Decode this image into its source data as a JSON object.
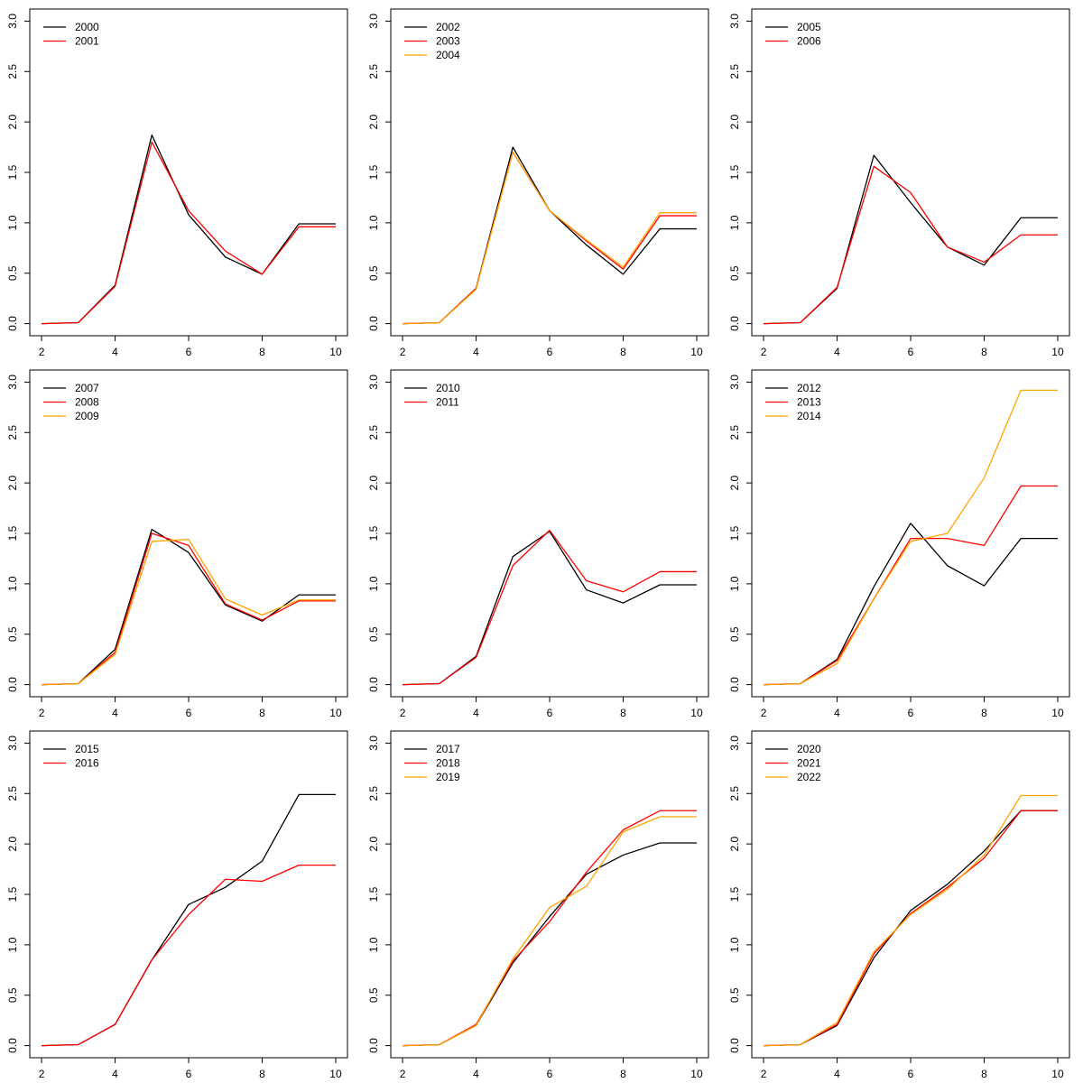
{
  "chart_data": [
    {
      "type": "line",
      "x": [
        2,
        3,
        4,
        5,
        6,
        7,
        8,
        9,
        10
      ],
      "xticks": [
        2,
        4,
        6,
        8,
        10
      ],
      "yticks": [
        0.0,
        0.5,
        1.0,
        1.5,
        2.0,
        2.5,
        3.0
      ],
      "ylim": [
        0,
        3
      ],
      "legend": "top-left",
      "series": [
        {
          "name": "2000",
          "color": "#000000",
          "values": [
            0.0,
            0.01,
            0.38,
            1.87,
            1.08,
            0.66,
            0.49,
            0.99,
            0.99
          ]
        },
        {
          "name": "2001",
          "color": "#ff0000",
          "values": [
            0.0,
            0.01,
            0.37,
            1.8,
            1.12,
            0.72,
            0.49,
            0.96,
            0.96
          ]
        }
      ]
    },
    {
      "type": "line",
      "x": [
        2,
        3,
        4,
        5,
        6,
        7,
        8,
        9,
        10
      ],
      "xticks": [
        2,
        4,
        6,
        8,
        10
      ],
      "yticks": [
        0.0,
        0.5,
        1.0,
        1.5,
        2.0,
        2.5,
        3.0
      ],
      "ylim": [
        0,
        3
      ],
      "legend": "top-left",
      "series": [
        {
          "name": "2002",
          "color": "#000000",
          "values": [
            0.0,
            0.01,
            0.35,
            1.75,
            1.12,
            0.78,
            0.49,
            0.94,
            0.94
          ]
        },
        {
          "name": "2003",
          "color": "#ff0000",
          "values": [
            0.0,
            0.01,
            0.35,
            1.7,
            1.12,
            0.82,
            0.54,
            1.07,
            1.07
          ]
        },
        {
          "name": "2004",
          "color": "#ffa500",
          "values": [
            0.0,
            0.01,
            0.34,
            1.7,
            1.12,
            0.83,
            0.56,
            1.1,
            1.1
          ]
        }
      ]
    },
    {
      "type": "line",
      "x": [
        2,
        3,
        4,
        5,
        6,
        7,
        8,
        9,
        10
      ],
      "xticks": [
        2,
        4,
        6,
        8,
        10
      ],
      "yticks": [
        0.0,
        0.5,
        1.0,
        1.5,
        2.0,
        2.5,
        3.0
      ],
      "ylim": [
        0,
        3
      ],
      "legend": "top-left",
      "series": [
        {
          "name": "2005",
          "color": "#000000",
          "values": [
            0.0,
            0.01,
            0.35,
            1.67,
            1.2,
            0.76,
            0.58,
            1.05,
            1.05
          ]
        },
        {
          "name": "2006",
          "color": "#ff0000",
          "values": [
            0.0,
            0.01,
            0.36,
            1.56,
            1.3,
            0.76,
            0.61,
            0.88,
            0.88
          ]
        }
      ]
    },
    {
      "type": "line",
      "x": [
        2,
        3,
        4,
        5,
        6,
        7,
        8,
        9,
        10
      ],
      "xticks": [
        2,
        4,
        6,
        8,
        10
      ],
      "yticks": [
        0.0,
        0.5,
        1.0,
        1.5,
        2.0,
        2.5,
        3.0
      ],
      "ylim": [
        0,
        3
      ],
      "legend": "top-left",
      "series": [
        {
          "name": "2007",
          "color": "#000000",
          "values": [
            0.0,
            0.01,
            0.35,
            1.54,
            1.31,
            0.79,
            0.63,
            0.89,
            0.89
          ]
        },
        {
          "name": "2008",
          "color": "#ff0000",
          "values": [
            0.0,
            0.01,
            0.32,
            1.5,
            1.38,
            0.8,
            0.64,
            0.83,
            0.83
          ]
        },
        {
          "name": "2009",
          "color": "#ffa500",
          "values": [
            0.0,
            0.01,
            0.3,
            1.42,
            1.44,
            0.85,
            0.69,
            0.84,
            0.84
          ]
        }
      ]
    },
    {
      "type": "line",
      "x": [
        2,
        3,
        4,
        5,
        6,
        7,
        8,
        9,
        10
      ],
      "xticks": [
        2,
        4,
        6,
        8,
        10
      ],
      "yticks": [
        0.0,
        0.5,
        1.0,
        1.5,
        2.0,
        2.5,
        3.0
      ],
      "ylim": [
        0,
        3
      ],
      "legend": "top-left",
      "series": [
        {
          "name": "2010",
          "color": "#000000",
          "values": [
            0.0,
            0.01,
            0.28,
            1.27,
            1.52,
            0.94,
            0.81,
            0.99,
            0.99
          ]
        },
        {
          "name": "2011",
          "color": "#ff0000",
          "values": [
            0.0,
            0.01,
            0.27,
            1.18,
            1.53,
            1.03,
            0.92,
            1.12,
            1.12
          ]
        }
      ]
    },
    {
      "type": "line",
      "x": [
        2,
        3,
        4,
        5,
        6,
        7,
        8,
        9,
        10
      ],
      "xticks": [
        2,
        4,
        6,
        8,
        10
      ],
      "yticks": [
        0.0,
        0.5,
        1.0,
        1.5,
        2.0,
        2.5,
        3.0
      ],
      "ylim": [
        0,
        3
      ],
      "legend": "top-left",
      "series": [
        {
          "name": "2012",
          "color": "#000000",
          "values": [
            0.0,
            0.01,
            0.25,
            0.97,
            1.6,
            1.18,
            0.98,
            1.45,
            1.45
          ]
        },
        {
          "name": "2013",
          "color": "#ff0000",
          "values": [
            0.0,
            0.01,
            0.24,
            0.85,
            1.45,
            1.45,
            1.38,
            1.97,
            1.97
          ]
        },
        {
          "name": "2014",
          "color": "#ffa500",
          "values": [
            0.0,
            0.01,
            0.21,
            0.85,
            1.42,
            1.5,
            2.05,
            2.92,
            2.92
          ]
        }
      ]
    },
    {
      "type": "line",
      "x": [
        2,
        3,
        4,
        5,
        6,
        7,
        8,
        9,
        10
      ],
      "xticks": [
        2,
        4,
        6,
        8,
        10
      ],
      "yticks": [
        0.0,
        0.5,
        1.0,
        1.5,
        2.0,
        2.5,
        3.0
      ],
      "ylim": [
        0,
        3
      ],
      "legend": "top-left",
      "series": [
        {
          "name": "2015",
          "color": "#000000",
          "values": [
            0.0,
            0.01,
            0.21,
            0.85,
            1.4,
            1.57,
            1.83,
            2.49,
            2.49
          ]
        },
        {
          "name": "2016",
          "color": "#ff0000",
          "values": [
            0.0,
            0.01,
            0.21,
            0.85,
            1.3,
            1.65,
            1.63,
            1.79,
            1.79
          ]
        }
      ]
    },
    {
      "type": "line",
      "x": [
        2,
        3,
        4,
        5,
        6,
        7,
        8,
        9,
        10
      ],
      "xticks": [
        2,
        4,
        6,
        8,
        10
      ],
      "yticks": [
        0.0,
        0.5,
        1.0,
        1.5,
        2.0,
        2.5,
        3.0
      ],
      "ylim": [
        0,
        3
      ],
      "legend": "top-left",
      "series": [
        {
          "name": "2017",
          "color": "#000000",
          "values": [
            0.0,
            0.01,
            0.2,
            0.82,
            1.28,
            1.7,
            1.89,
            2.01,
            2.01
          ]
        },
        {
          "name": "2018",
          "color": "#ff0000",
          "values": [
            0.0,
            0.01,
            0.21,
            0.84,
            1.23,
            1.72,
            2.14,
            2.33,
            2.33
          ]
        },
        {
          "name": "2019",
          "color": "#ffa500",
          "values": [
            0.0,
            0.01,
            0.2,
            0.86,
            1.37,
            1.58,
            2.12,
            2.27,
            2.27
          ]
        }
      ]
    },
    {
      "type": "line",
      "x": [
        2,
        3,
        4,
        5,
        6,
        7,
        8,
        9,
        10
      ],
      "xticks": [
        2,
        4,
        6,
        8,
        10
      ],
      "yticks": [
        0.0,
        0.5,
        1.0,
        1.5,
        2.0,
        2.5,
        3.0
      ],
      "ylim": [
        0,
        3
      ],
      "legend": "top-left",
      "series": [
        {
          "name": "2020",
          "color": "#000000",
          "values": [
            0.0,
            0.01,
            0.2,
            0.87,
            1.34,
            1.6,
            1.93,
            2.33,
            2.33
          ]
        },
        {
          "name": "2021",
          "color": "#ff0000",
          "values": [
            0.0,
            0.01,
            0.21,
            0.91,
            1.31,
            1.57,
            1.86,
            2.33,
            2.33
          ]
        },
        {
          "name": "2022",
          "color": "#ffa500",
          "values": [
            0.0,
            0.01,
            0.23,
            0.93,
            1.3,
            1.55,
            1.89,
            2.48,
            2.48
          ]
        }
      ]
    }
  ]
}
